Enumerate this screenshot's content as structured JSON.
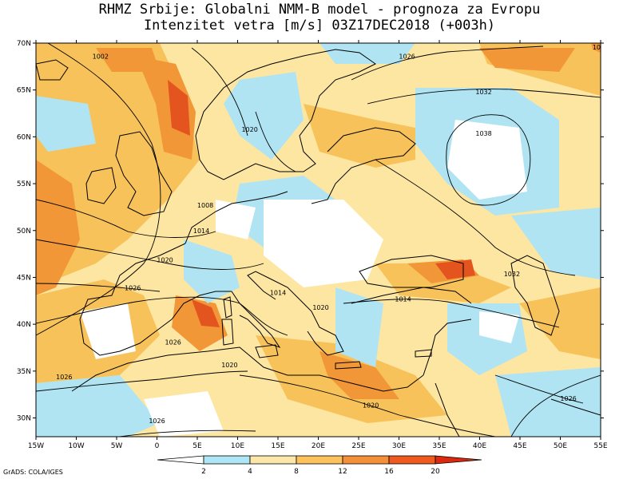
{
  "header": {
    "title_line1": "RHMZ Srbije: Globalni NMM-B model - prognoza za Evropu",
    "title_line2": "Intenzitet vetra [m/s] 03Z17DEC2018 (+003h)"
  },
  "map": {
    "lat_labels": [
      "70N",
      "65N",
      "60N",
      "55N",
      "50N",
      "45N",
      "40N",
      "35N",
      "30N"
    ],
    "lat_values": [
      70,
      65,
      60,
      55,
      50,
      45,
      40,
      35,
      30
    ],
    "lon_labels": [
      "15W",
      "10W",
      "5W",
      "0",
      "5E",
      "10E",
      "15E",
      "20E",
      "25E",
      "30E",
      "35E",
      "40E",
      "45E",
      "50E",
      "55E"
    ],
    "lon_values": [
      -15,
      -10,
      -5,
      0,
      5,
      10,
      15,
      20,
      25,
      30,
      35,
      40,
      45,
      50,
      55
    ],
    "isobar_labels": [
      {
        "text": "1002",
        "lon": -7,
        "lat": 68.5
      },
      {
        "text": "1026",
        "lon": 31,
        "lat": 68.5
      },
      {
        "text": "1032",
        "lon": 40.5,
        "lat": 64.7
      },
      {
        "text": "1020",
        "lon": 11.5,
        "lat": 60.7
      },
      {
        "text": "1038",
        "lon": 40.5,
        "lat": 60.3
      },
      {
        "text": "1008",
        "lon": 6,
        "lat": 52.6
      },
      {
        "text": "1014",
        "lon": 5.5,
        "lat": 49.9
      },
      {
        "text": "1020",
        "lon": 1,
        "lat": 46.8
      },
      {
        "text": "1026",
        "lon": -3,
        "lat": 43.8
      },
      {
        "text": "1014",
        "lon": 15,
        "lat": 43.3
      },
      {
        "text": "1014",
        "lon": 30.5,
        "lat": 42.6
      },
      {
        "text": "1032",
        "lon": 44,
        "lat": 45.3
      },
      {
        "text": "1020",
        "lon": 20.3,
        "lat": 41.7
      },
      {
        "text": "1026",
        "lon": 2,
        "lat": 38
      },
      {
        "text": "1020",
        "lon": 9,
        "lat": 35.6
      },
      {
        "text": "1026",
        "lon": -11.5,
        "lat": 34.3
      },
      {
        "text": "1020",
        "lon": 26.5,
        "lat": 31.3
      },
      {
        "text": "1026",
        "lon": 51,
        "lat": 32
      },
      {
        "text": "1026",
        "lon": 0,
        "lat": 29.6
      },
      {
        "text": "10",
        "lon": 54.5,
        "lat": 69.5
      }
    ]
  },
  "legend": {
    "tick_labels": [
      "2",
      "4",
      "8",
      "12",
      "16",
      "20"
    ],
    "colors": [
      "#ffffff",
      "#aee6f5",
      "#fde7a8",
      "#fbc25e",
      "#f5903a",
      "#ef5a1f",
      "#d92a10"
    ]
  },
  "colors": {
    "calm": "#ffffff",
    "light": "#b0e4f2",
    "moderate": "#fde6a2",
    "fresh": "#f8c25a",
    "strong": "#f29738",
    "gale": "#e4541e"
  },
  "footer": {
    "credit": "GrADS: COLA/IGES"
  }
}
